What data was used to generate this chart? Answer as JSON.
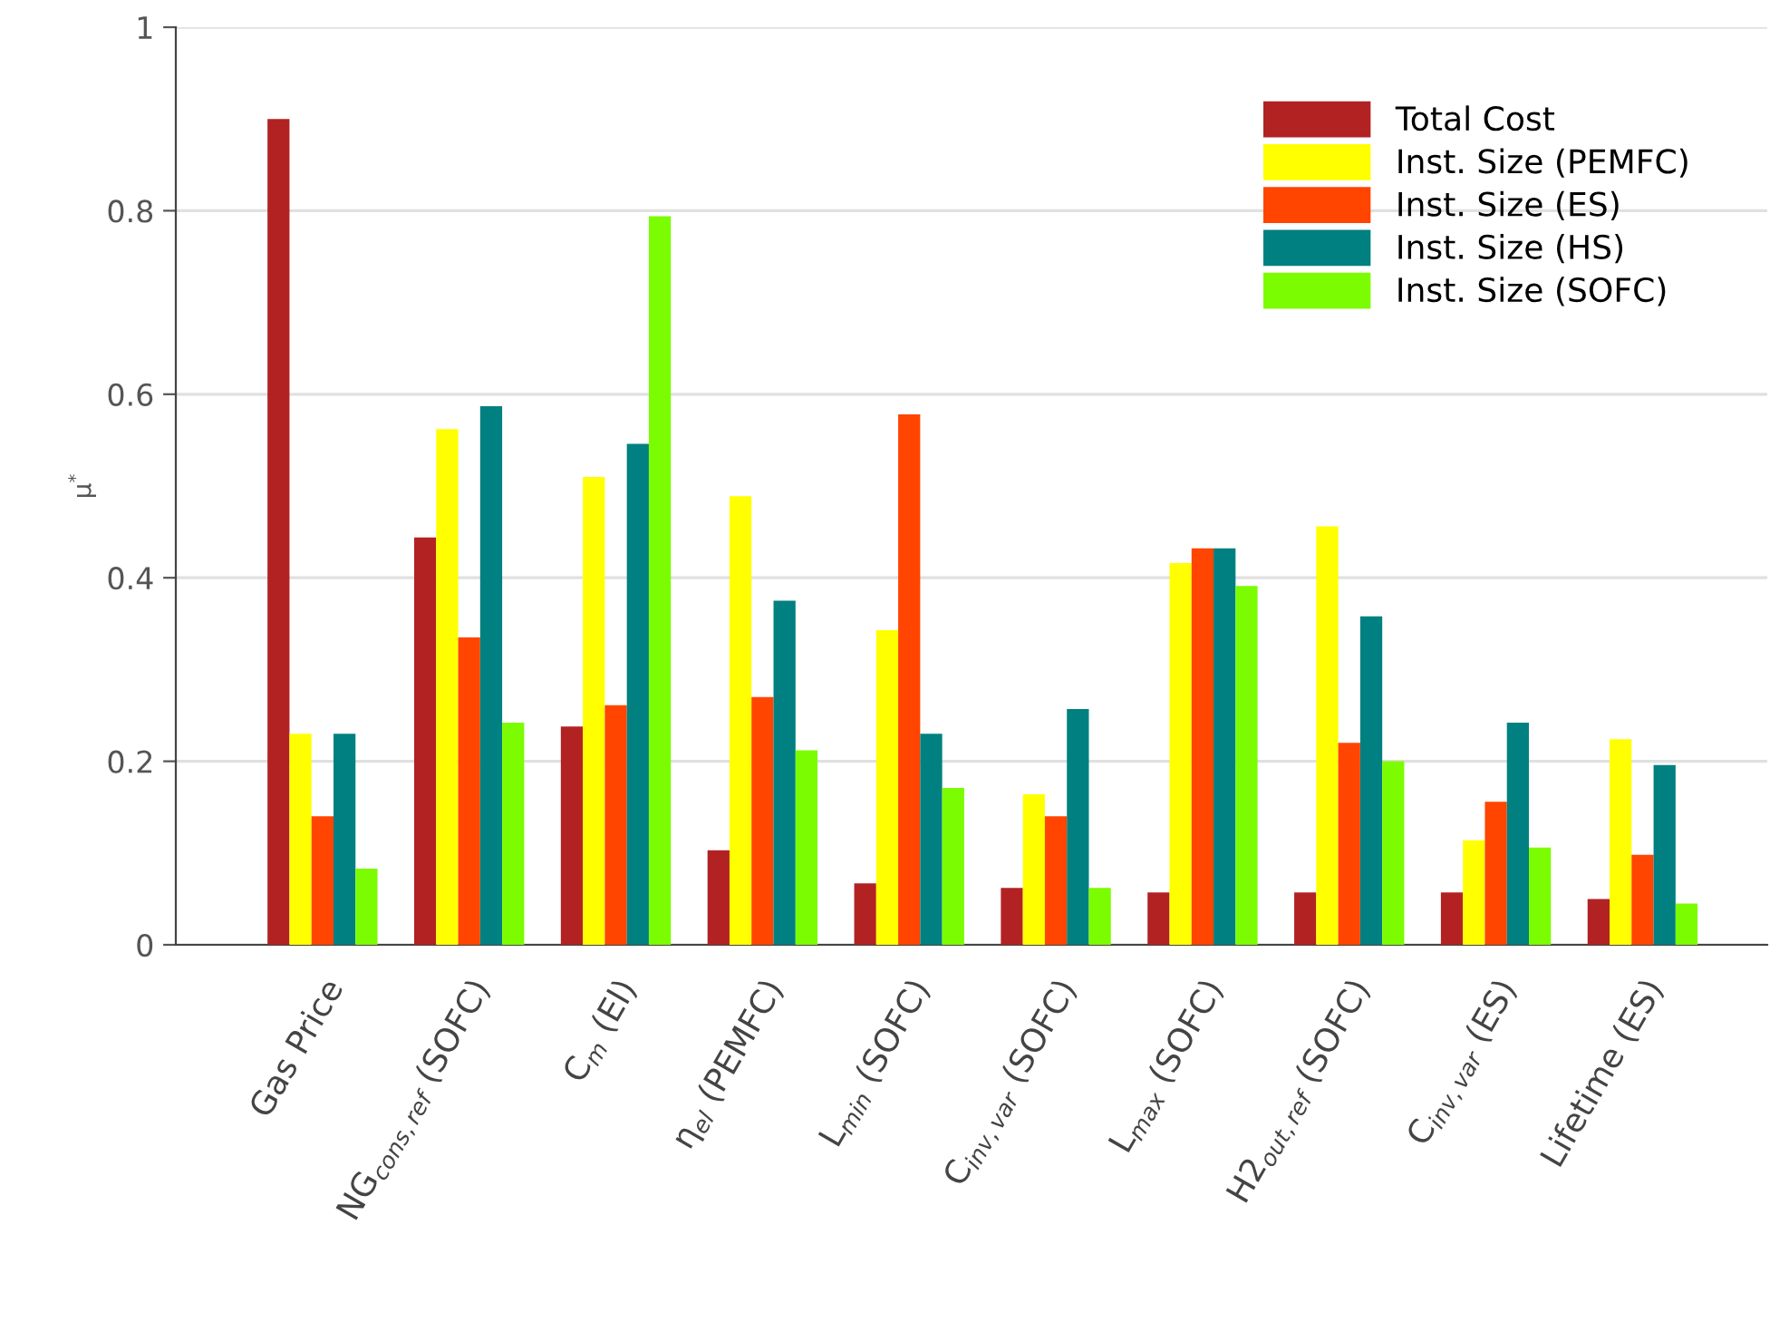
{
  "chart_data": {
    "type": "bar",
    "ylabel": "μ$^{*}$",
    "categories": [
      "Gas Price",
      "NG$_{cons,ref}$ (SOFC)",
      "C$_{m}$ (El)",
      "η$_{el}$ (PEMFC)",
      "L$_{min}$ (SOFC)",
      "C$_{inv,var}$ (SOFC)",
      "L$_{max}$ (SOFC)",
      "H2$_{out,ref}$ (SOFC)",
      "C$_{inv,var}$ (ES)",
      "Lifetime (ES)"
    ],
    "series": [
      {
        "name": "Total Cost",
        "color": "#b22222",
        "values": [
          0.9,
          0.444,
          0.238,
          0.103,
          0.067,
          0.062,
          0.057,
          0.057,
          0.057,
          0.05
        ]
      },
      {
        "name": "Inst. Size (PEMFC)",
        "color": "#ffff00",
        "values": [
          0.23,
          0.562,
          0.51,
          0.489,
          0.343,
          0.164,
          0.416,
          0.456,
          0.114,
          0.224
        ]
      },
      {
        "name": "Inst. Size (ES)",
        "color": "#ff4500",
        "values": [
          0.14,
          0.335,
          0.261,
          0.27,
          0.578,
          0.14,
          0.432,
          0.22,
          0.156,
          0.098
        ]
      },
      {
        "name": "Inst. Size (HS)",
        "color": "#008080",
        "values": [
          0.23,
          0.587,
          0.546,
          0.375,
          0.23,
          0.257,
          0.432,
          0.358,
          0.242,
          0.196
        ]
      },
      {
        "name": "Inst. Size (SOFC)",
        "color": "#7cfc00",
        "values": [
          0.083,
          0.242,
          0.794,
          0.212,
          0.171,
          0.062,
          0.391,
          0.2,
          0.106,
          0.045
        ]
      }
    ],
    "ylim": [
      0,
      1
    ],
    "yticks": [
      0,
      0.2,
      0.4,
      0.6,
      0.8,
      1
    ],
    "grid": "y",
    "legend": "top right"
  }
}
